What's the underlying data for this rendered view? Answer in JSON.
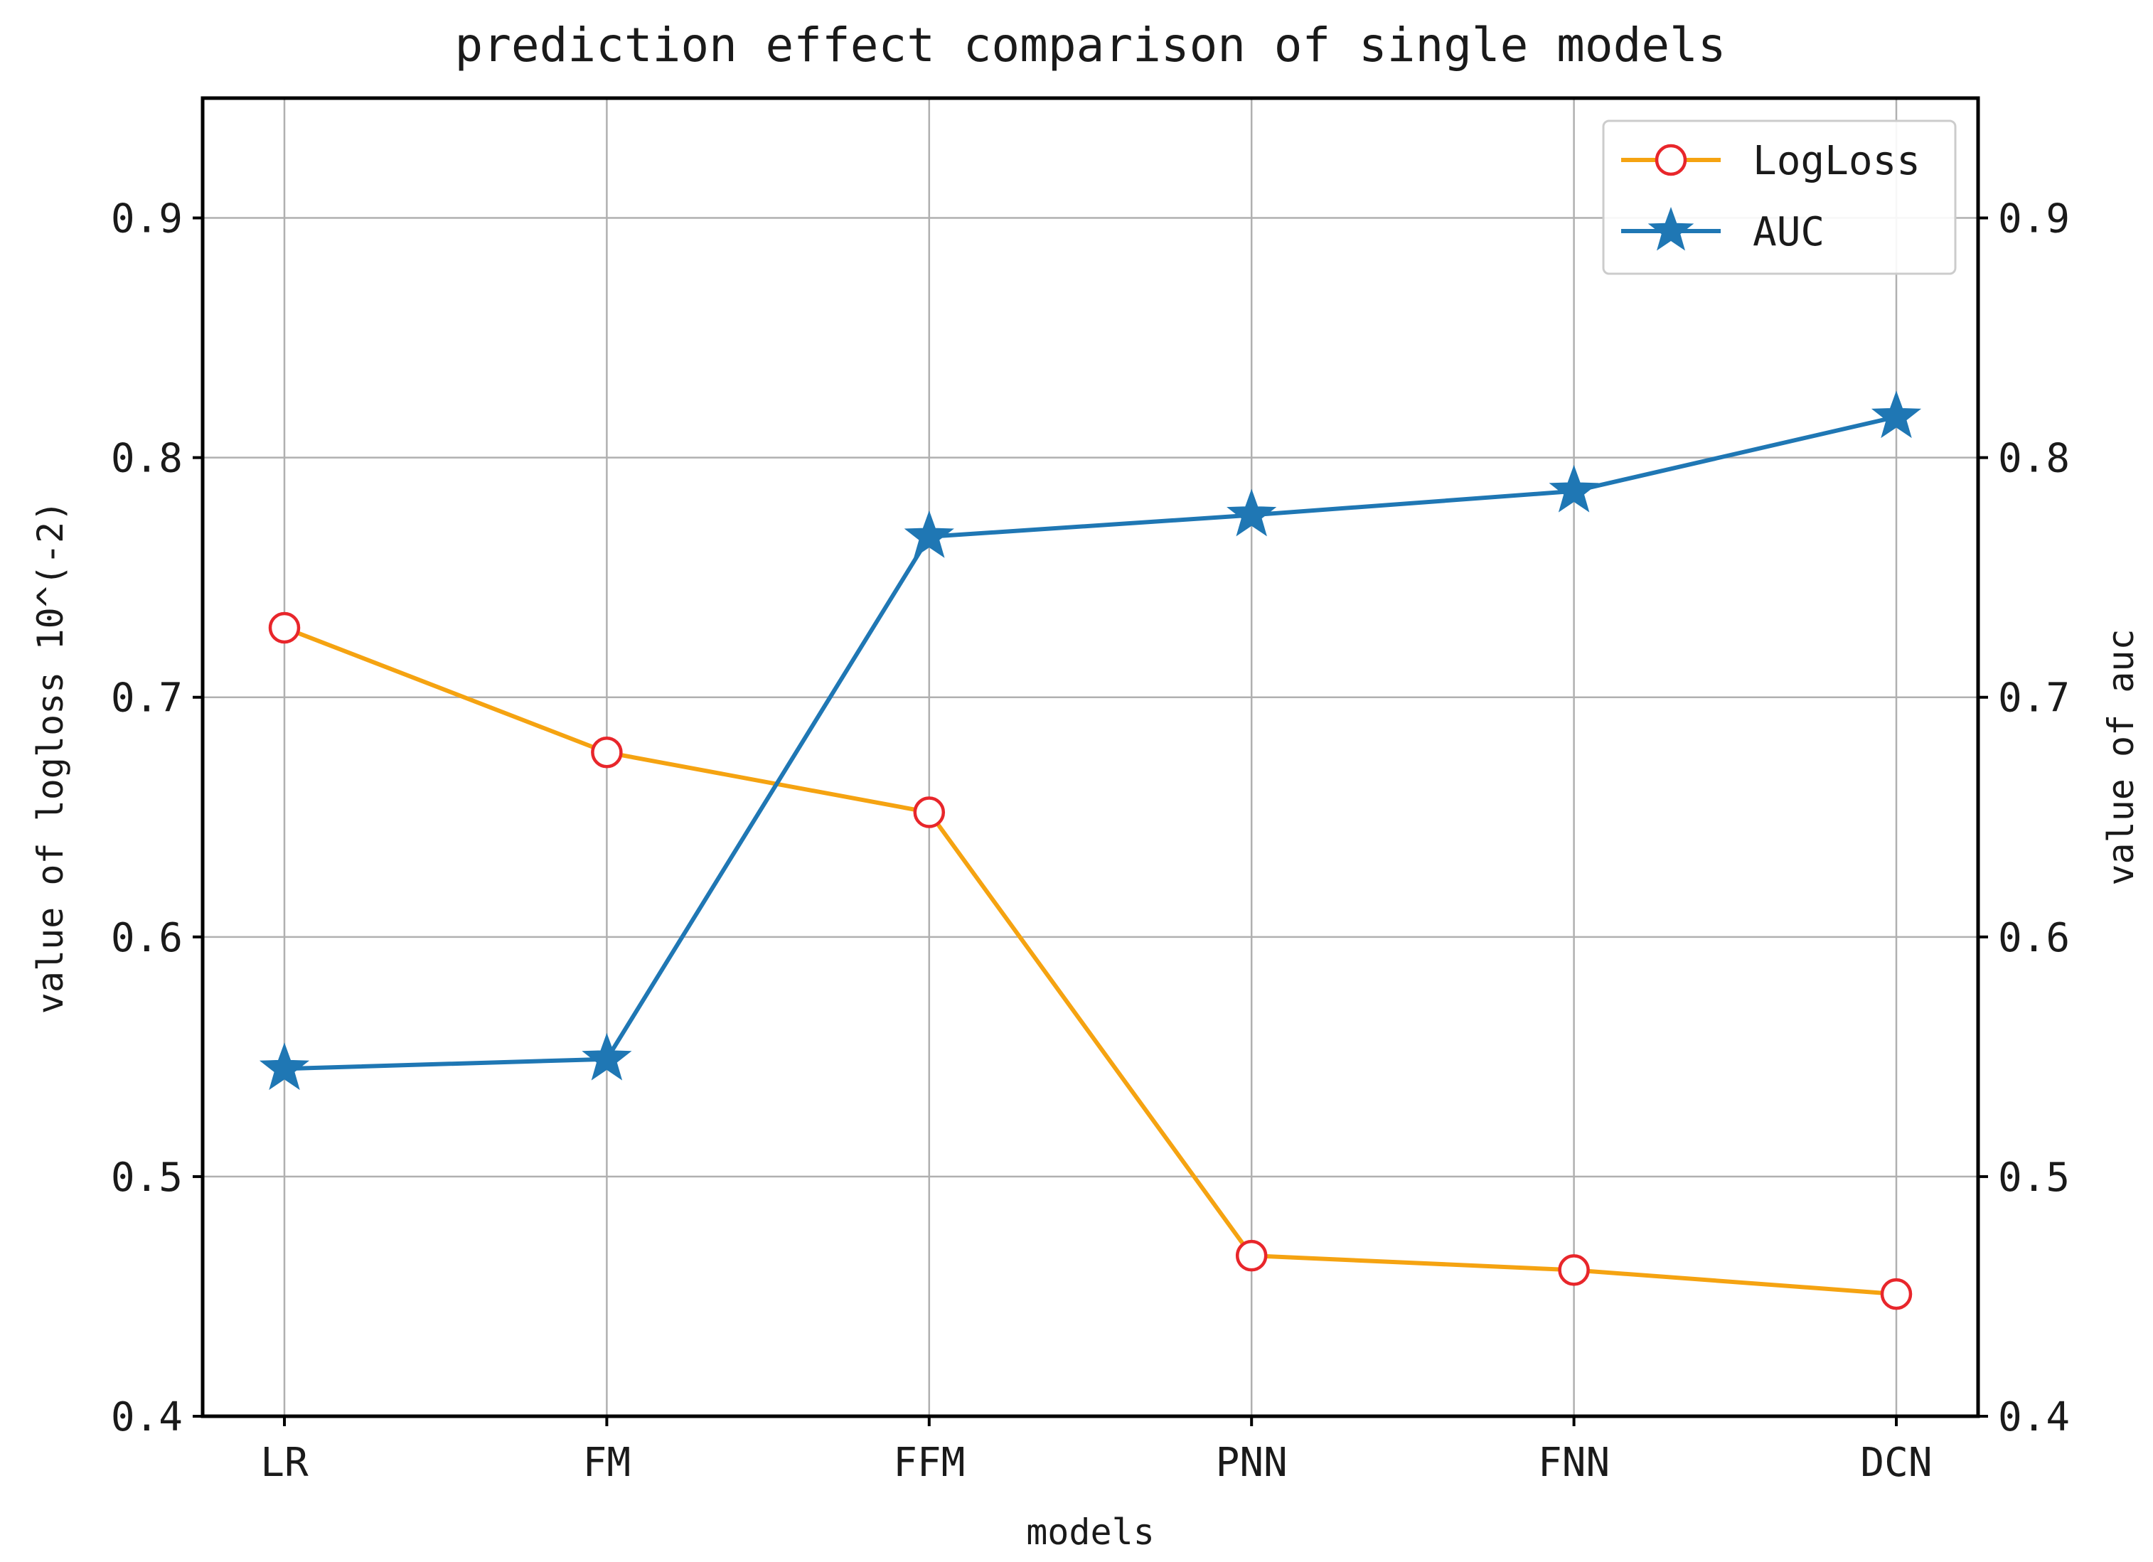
{
  "chart_data": {
    "type": "line",
    "title": "prediction effect comparison of single models",
    "xlabel": "models",
    "ylabel_left": "value of logloss 10^(-2)",
    "ylabel_right": "value of auc",
    "categories": [
      "LR",
      "FM",
      "FFM",
      "PNN",
      "FNN",
      "DCN"
    ],
    "ylim": [
      0.4,
      0.95
    ],
    "yticks": [
      0.4,
      0.5,
      0.6,
      0.7,
      0.8,
      0.9
    ],
    "ytick_labels": [
      "0.4",
      "0.5",
      "0.6",
      "0.7",
      "0.8",
      "0.9"
    ],
    "grid": true,
    "legend_position": "top-right",
    "series": [
      {
        "name": "LogLoss",
        "axis": "left",
        "marker": "circle",
        "color": "#f5a311",
        "marker_edge_color": "#e8262b",
        "values": [
          0.729,
          0.677,
          0.652,
          0.467,
          0.461,
          0.451
        ]
      },
      {
        "name": "AUC",
        "axis": "right",
        "marker": "star",
        "color": "#1f77b4",
        "values": [
          0.545,
          0.549,
          0.767,
          0.776,
          0.786,
          0.817
        ]
      }
    ]
  }
}
